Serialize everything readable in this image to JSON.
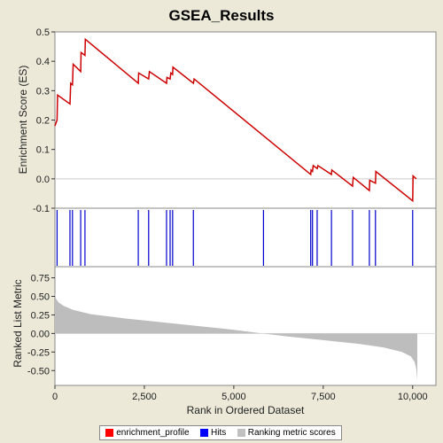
{
  "chart_data": {
    "type": "line",
    "title": "GSEA_Results",
    "xlabel": "Rank in Ordered Dataset",
    "xlim": [
      0,
      10650
    ],
    "x_ticks": [
      0,
      2500,
      5000,
      7500,
      10000
    ],
    "x_tick_labels": [
      "0",
      "2,500",
      "5,000",
      "7,500",
      "10,000"
    ],
    "es_panel": {
      "ylabel": "Enrichment Score (ES)",
      "ylim": [
        -0.1,
        0.5
      ],
      "y_ticks": [
        -0.1,
        0.0,
        0.1,
        0.2,
        0.3,
        0.4,
        0.5
      ],
      "y_tick_labels": [
        "-0.1",
        "0.0",
        "0.1",
        "0.2",
        "0.3",
        "0.4",
        "0.5"
      ],
      "color": "#cc0000",
      "points": [
        [
          0,
          0.18
        ],
        [
          60,
          0.2
        ],
        [
          75,
          0.285
        ],
        [
          420,
          0.255
        ],
        [
          440,
          0.325
        ],
        [
          490,
          0.32
        ],
        [
          510,
          0.39
        ],
        [
          720,
          0.365
        ],
        [
          730,
          0.43
        ],
        [
          840,
          0.42
        ],
        [
          850,
          0.475
        ],
        [
          2330,
          0.325
        ],
        [
          2340,
          0.36
        ],
        [
          2620,
          0.34
        ],
        [
          2640,
          0.365
        ],
        [
          3120,
          0.325
        ],
        [
          3130,
          0.345
        ],
        [
          3220,
          0.34
        ],
        [
          3240,
          0.36
        ],
        [
          3290,
          0.355
        ],
        [
          3300,
          0.38
        ],
        [
          3870,
          0.325
        ],
        [
          3890,
          0.34
        ],
        [
          7150,
          0.015
        ],
        [
          7160,
          0.03
        ],
        [
          7200,
          0.025
        ],
        [
          7220,
          0.045
        ],
        [
          7330,
          0.035
        ],
        [
          7350,
          0.045
        ],
        [
          7730,
          0.015
        ],
        [
          7740,
          0.03
        ],
        [
          8320,
          -0.025
        ],
        [
          8340,
          0.005
        ],
        [
          8790,
          -0.04
        ],
        [
          8800,
          -0.005
        ],
        [
          8960,
          -0.015
        ],
        [
          8970,
          0.025
        ],
        [
          10000,
          -0.075
        ],
        [
          10010,
          0.01
        ],
        [
          10100,
          0.0
        ]
      ]
    },
    "hits_panel": {
      "color": "#0000cc",
      "hit_ranks": [
        60,
        420,
        490,
        720,
        840,
        2330,
        2620,
        3120,
        3220,
        3290,
        3870,
        5830,
        7150,
        7200,
        7330,
        7730,
        8320,
        8790,
        8960,
        10000
      ]
    },
    "metric_panel": {
      "ylabel": "Ranked List Metric",
      "ylim": [
        -0.7,
        0.9
      ],
      "y_ticks": [
        -0.5,
        -0.25,
        0.0,
        0.25,
        0.5,
        0.75
      ],
      "y_tick_labels": [
        "-0.50",
        "-0.25",
        "0.00",
        "0.25",
        "0.50",
        "0.75"
      ],
      "color": "#c0c0c0",
      "points": [
        [
          0,
          0.55
        ],
        [
          30,
          0.47
        ],
        [
          100,
          0.42
        ],
        [
          250,
          0.37
        ],
        [
          500,
          0.32
        ],
        [
          1000,
          0.26
        ],
        [
          2000,
          0.2
        ],
        [
          3000,
          0.15
        ],
        [
          4000,
          0.1
        ],
        [
          5000,
          0.05
        ],
        [
          5800,
          0.0
        ],
        [
          6500,
          -0.04
        ],
        [
          7500,
          -0.09
        ],
        [
          8500,
          -0.14
        ],
        [
          9200,
          -0.19
        ],
        [
          9700,
          -0.25
        ],
        [
          9950,
          -0.31
        ],
        [
          10050,
          -0.38
        ],
        [
          10100,
          -0.47
        ],
        [
          10130,
          -0.63
        ]
      ]
    },
    "legend": {
      "placement": "bottom",
      "entries": [
        {
          "label": "enrichment_profile",
          "color": "#ff0000"
        },
        {
          "label": "Hits",
          "color": "#0000ff"
        },
        {
          "label": "Ranking metric scores",
          "color": "#c0c0c0"
        }
      ]
    }
  }
}
